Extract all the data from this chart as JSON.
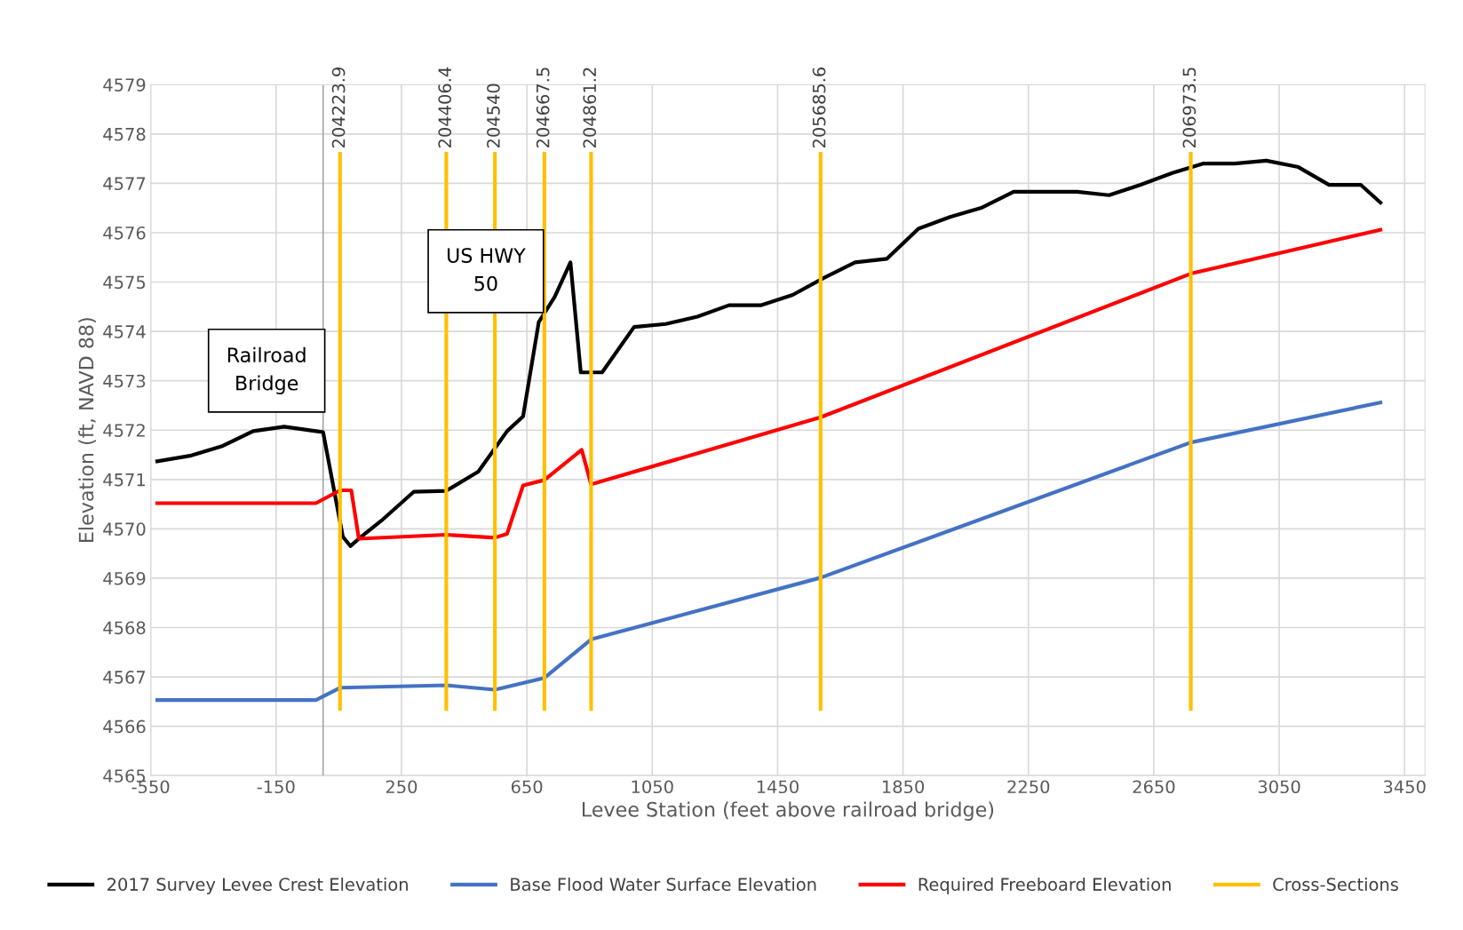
{
  "chart_data": {
    "type": "line",
    "xlabel": "Levee Station (feet above railroad bridge)",
    "ylabel": "Elevation (ft, NAVD 88)",
    "xlim": [
      -550,
      3515
    ],
    "xticks": [
      -550,
      -150,
      250,
      650,
      1050,
      1450,
      1850,
      2250,
      2650,
      3050,
      3450
    ],
    "ylim": [
      4565,
      4579
    ],
    "yticks": [
      4565,
      4566,
      4567,
      4568,
      4569,
      4570,
      4571,
      4572,
      4573,
      4574,
      4575,
      4576,
      4577,
      4578,
      4579
    ],
    "grid": true,
    "legend": "bottom",
    "marker": "none",
    "line_style": "solid",
    "ref_lines": [
      {
        "axis": "x",
        "value": 0,
        "color": "#a6a6a6"
      }
    ],
    "series": [
      {
        "name": "2017 Survey Levee Crest Elevation",
        "color": "#000000",
        "x": [
          -529,
          -425,
          -324,
          -223,
          -124,
          -23,
          0,
          63,
          87,
          114,
          185,
          289,
          393,
          495,
          548,
          587,
          638,
          688,
          739,
          789,
          822,
          890,
          992,
          1093,
          1194,
          1295,
          1396,
          1498,
          1596,
          1697,
          1798,
          1899,
          2000,
          2102,
          2203,
          2304,
          2405,
          2507,
          2608,
          2709,
          2807,
          2908,
          3009,
          3111,
          3209,
          3310,
          3373
        ],
        "values": [
          4571.37,
          4571.48,
          4571.67,
          4571.98,
          4572.07,
          4571.98,
          4571.96,
          4569.84,
          4569.65,
          4569.8,
          4570.16,
          4570.75,
          4570.77,
          4571.16,
          4571.63,
          4571.98,
          4572.28,
          4574.19,
          4574.7,
          4575.4,
          4573.17,
          4573.17,
          4574.09,
          4574.15,
          4574.3,
          4574.53,
          4574.53,
          4574.74,
          4575.08,
          4575.4,
          4575.47,
          4576.08,
          4576.32,
          4576.51,
          4576.83,
          4576.83,
          4576.83,
          4576.76,
          4576.97,
          4577.21,
          4577.4,
          4577.4,
          4577.46,
          4577.33,
          4576.97,
          4576.97,
          4576.61
        ]
      },
      {
        "name": "Base Flood Water Surface Elevation",
        "color": "#4472c4",
        "x": [
          -529,
          -23,
          54,
          393,
          548,
          706,
          855,
          1587,
          2768,
          3373
        ],
        "values": [
          4566.53,
          4566.53,
          4566.78,
          4566.83,
          4566.74,
          4566.98,
          4567.76,
          4569.01,
          4571.75,
          4572.56
        ]
      },
      {
        "name": "Required Freeboard Elevation",
        "color": "#ff0000",
        "x": [
          -529,
          -23,
          54,
          90,
          114,
          393,
          548,
          587,
          638,
          706,
          825,
          855,
          1587,
          2768,
          3373
        ],
        "values": [
          4570.52,
          4570.52,
          4570.78,
          4570.78,
          4569.8,
          4569.88,
          4569.82,
          4569.9,
          4570.88,
          4570.99,
          4571.6,
          4570.9,
          4572.26,
          4575.17,
          4576.06
        ]
      },
      {
        "name": "Cross-Sections",
        "color": "#ffc000",
        "x": [
          54,
          54
        ],
        "values": [
          4566.35,
          4577.6
        ]
      },
      {
        "color": "#ffc000",
        "x": [
          393,
          393
        ],
        "values": [
          4566.35,
          4577.6
        ]
      },
      {
        "color": "#ffc000",
        "x": [
          548,
          548
        ],
        "values": [
          4566.35,
          4577.6
        ]
      },
      {
        "color": "#ffc000",
        "x": [
          706,
          706
        ],
        "values": [
          4566.35,
          4577.6
        ]
      },
      {
        "color": "#ffc000",
        "x": [
          855,
          855
        ],
        "values": [
          4566.35,
          4577.6
        ]
      },
      {
        "color": "#ffc000",
        "x": [
          1587,
          1587
        ],
        "values": [
          4566.35,
          4577.6
        ]
      },
      {
        "color": "#ffc000",
        "x": [
          2768,
          2768
        ],
        "values": [
          4566.35,
          4577.6
        ]
      }
    ],
    "annotations": [
      {
        "text": "204223.9",
        "x": 54,
        "y": 4577.6
      },
      {
        "text": "204406.4",
        "x": 393,
        "y": 4577.6
      },
      {
        "text": "204540",
        "x": 548,
        "y": 4577.6
      },
      {
        "text": "204667.5",
        "x": 706,
        "y": 4577.6
      },
      {
        "text": "204861.2",
        "x": 855,
        "y": 4577.6
      },
      {
        "text": "205685.6",
        "x": 1587,
        "y": 4577.6
      },
      {
        "text": "206973.5",
        "x": 2768,
        "y": 4577.6
      },
      "Railroad\nBridge",
      "US HWY\n50"
    ]
  }
}
